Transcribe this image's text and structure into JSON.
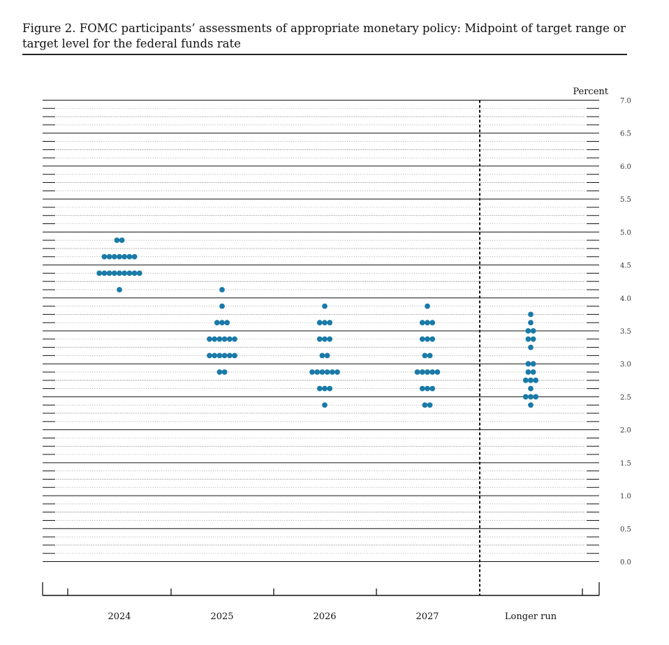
{
  "figure": {
    "title": "Figure 2.  FOMC participants’ assessments of appropriate monetary policy:  Midpoint of target range or target level for the federal funds rate"
  },
  "chart_data": {
    "type": "scatter",
    "title": "Figure 2.  FOMC participants’ assessments of appropriate monetary policy:  Midpoint of target range or target level for the federal funds rate",
    "ylabel": "Percent",
    "ylim": [
      0,
      7
    ],
    "yticks": [
      "0.0",
      "0.5",
      "1.0",
      "1.5",
      "2.0",
      "2.5",
      "3.0",
      "3.5",
      "4.0",
      "4.5",
      "5.0",
      "5.5",
      "6.0",
      "6.5",
      "7.0"
    ],
    "categories": [
      "2024",
      "2025",
      "2026",
      "2027",
      "Longer run"
    ],
    "grid": true,
    "point_color": "#1a7aa8",
    "dots": [
      {
        "category": "2024",
        "points": [
          {
            "y": 4.875,
            "count": 2
          },
          {
            "y": 4.625,
            "count": 7
          },
          {
            "y": 4.375,
            "count": 9
          },
          {
            "y": 4.125,
            "count": 1
          }
        ]
      },
      {
        "category": "2025",
        "points": [
          {
            "y": 4.125,
            "count": 1
          },
          {
            "y": 3.875,
            "count": 1
          },
          {
            "y": 3.625,
            "count": 3
          },
          {
            "y": 3.375,
            "count": 6
          },
          {
            "y": 3.125,
            "count": 6
          },
          {
            "y": 2.875,
            "count": 2
          }
        ]
      },
      {
        "category": "2026",
        "points": [
          {
            "y": 3.875,
            "count": 1
          },
          {
            "y": 3.625,
            "count": 3
          },
          {
            "y": 3.375,
            "count": 3
          },
          {
            "y": 3.125,
            "count": 2
          },
          {
            "y": 2.875,
            "count": 6
          },
          {
            "y": 2.625,
            "count": 3
          },
          {
            "y": 2.375,
            "count": 1
          }
        ]
      },
      {
        "category": "2027",
        "points": [
          {
            "y": 3.875,
            "count": 1
          },
          {
            "y": 3.625,
            "count": 3
          },
          {
            "y": 3.375,
            "count": 3
          },
          {
            "y": 3.125,
            "count": 2
          },
          {
            "y": 2.875,
            "count": 5
          },
          {
            "y": 2.625,
            "count": 3
          },
          {
            "y": 2.375,
            "count": 2
          }
        ]
      },
      {
        "category": "Longer run",
        "points": [
          {
            "y": 3.75,
            "count": 1
          },
          {
            "y": 3.625,
            "count": 1
          },
          {
            "y": 3.5,
            "count": 2
          },
          {
            "y": 3.375,
            "count": 2
          },
          {
            "y": 3.25,
            "count": 1
          },
          {
            "y": 3.0,
            "count": 2
          },
          {
            "y": 2.875,
            "count": 2
          },
          {
            "y": 2.75,
            "count": 3
          },
          {
            "y": 2.625,
            "count": 1
          },
          {
            "y": 2.5,
            "count": 3
          },
          {
            "y": 2.375,
            "count": 1
          }
        ]
      }
    ]
  }
}
